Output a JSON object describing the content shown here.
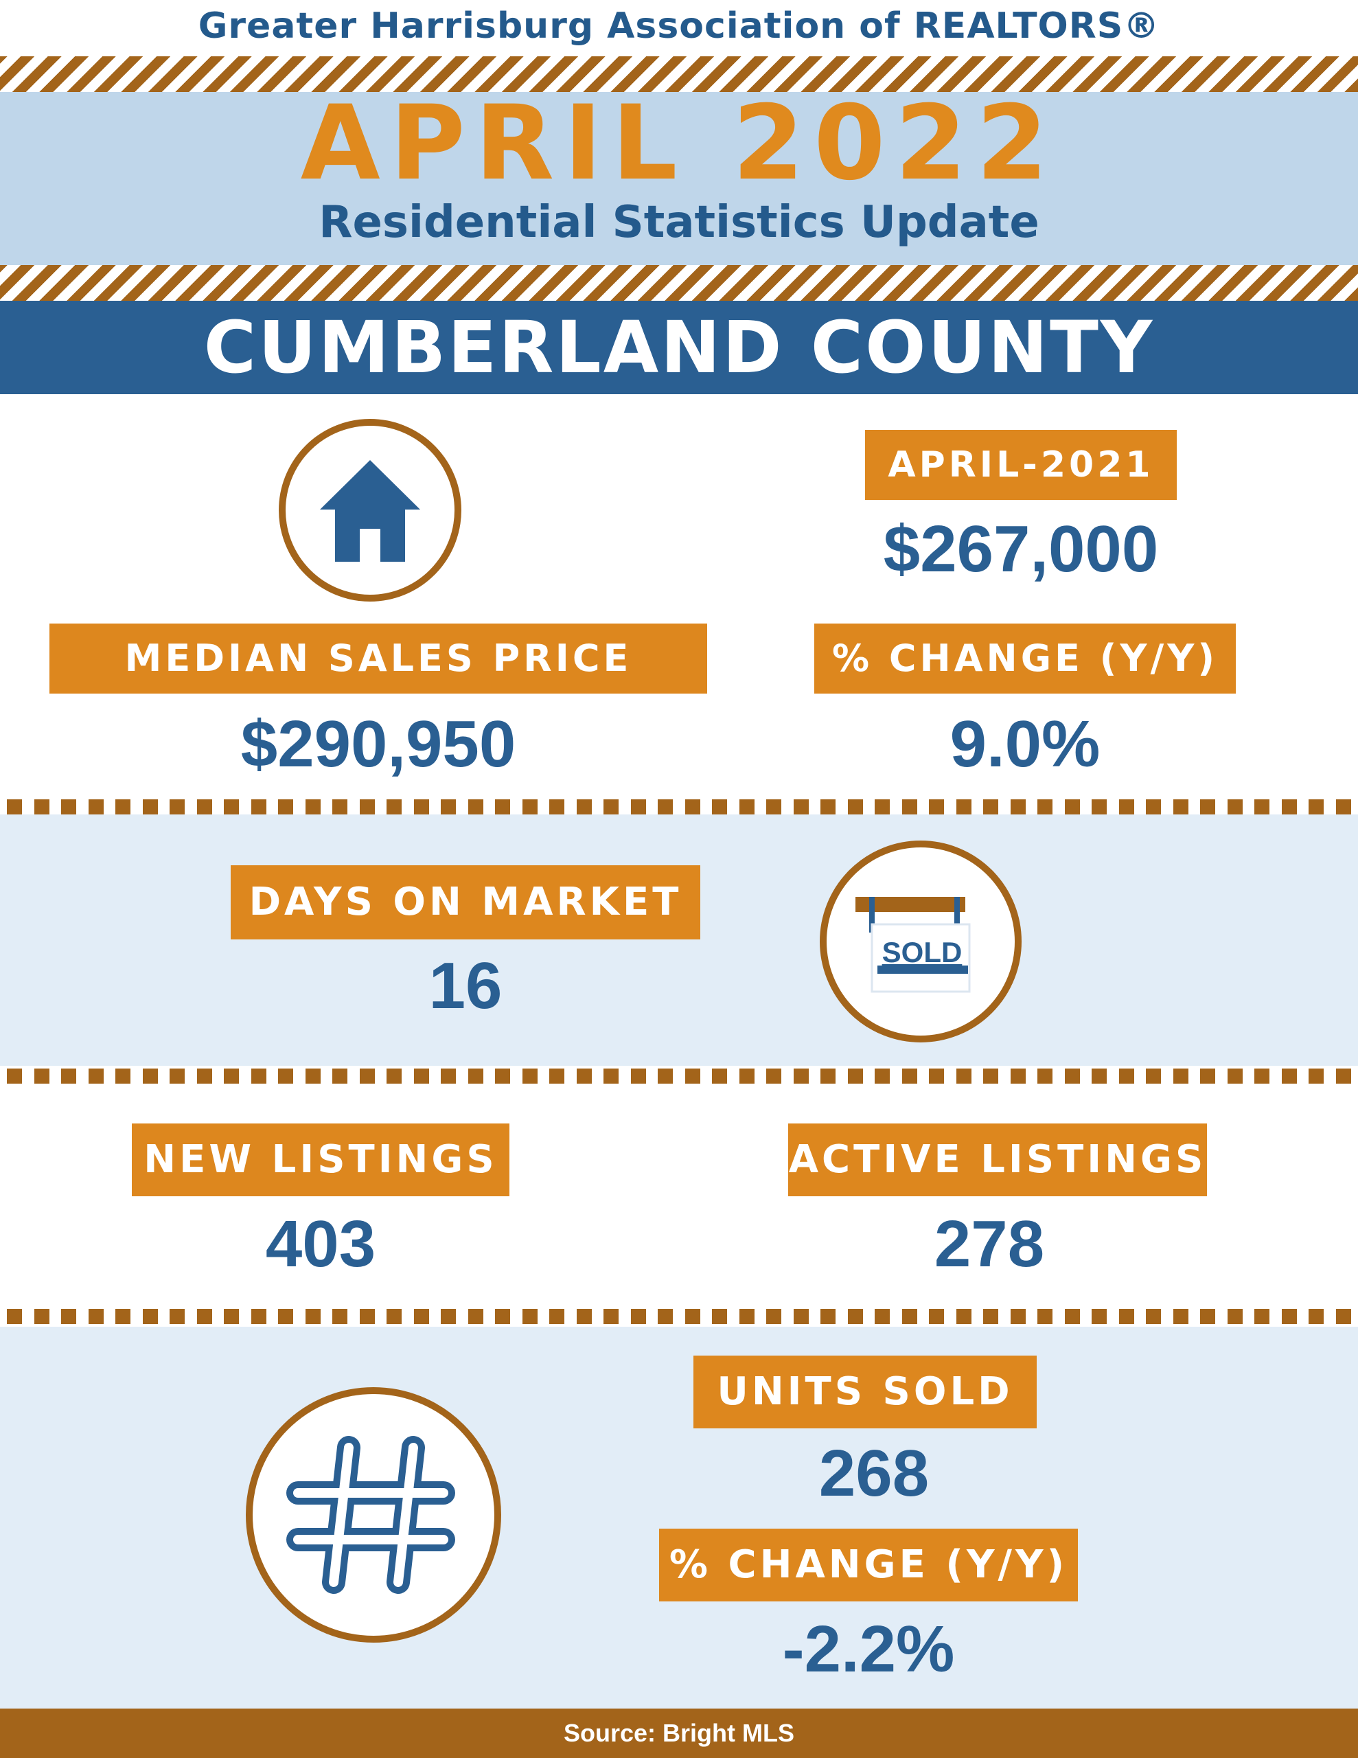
{
  "header": {
    "organization": "Greater Harrisburg Association of REALTORS®",
    "month": "APRIL 2022",
    "subtitle": "Residential Statistics Update",
    "county": "CUMBERLAND COUNTY"
  },
  "median_sales_price": {
    "label": "MEDIAN SALES PRICE",
    "value": "$290,950",
    "icon": "house-icon"
  },
  "prior_year": {
    "label": "APRIL-2021",
    "value": "$267,000"
  },
  "price_change": {
    "label": "% CHANGE (Y/Y)",
    "value": "9.0%"
  },
  "days_on_market": {
    "label": "DAYS ON MARKET",
    "value": "16",
    "icon": "sold-sign-icon",
    "icon_text": "SOLD"
  },
  "new_listings": {
    "label": "NEW LISTINGS",
    "value": "403"
  },
  "active_listings": {
    "label": "ACTIVE LISTINGS",
    "value": "278"
  },
  "units_sold": {
    "label": "UNITS SOLD",
    "value": "268",
    "icon": "hash-icon"
  },
  "units_change": {
    "label": "% CHANGE (Y/Y)",
    "value": "-2.2%"
  },
  "footer": {
    "source": "Source: Bright MLS"
  },
  "colors": {
    "navy": "#2a5f92",
    "orange": "#dd871e",
    "brown": "#a3641a",
    "light_blue": "#bfd6ea",
    "pale_blue": "#e2edf7"
  }
}
